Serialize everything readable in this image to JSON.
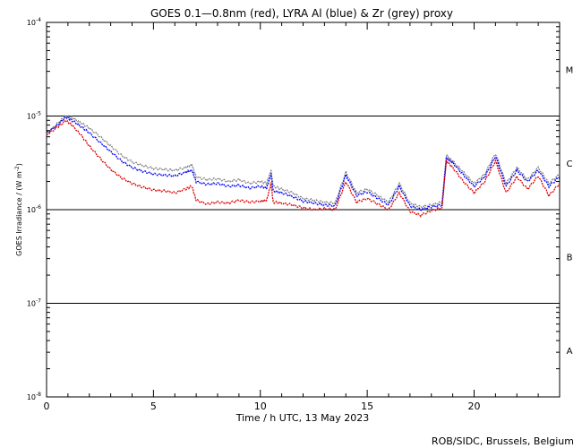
{
  "chart_data": {
    "type": "line",
    "title": "GOES 0.1—0.8nm (red), LYRA Al (blue) & Zr (grey) proxy",
    "xlabel": "Time / h UTC, 13 May 2023",
    "ylabel": "GOES Irradiance / (W m",
    "ylabel_sup": "-2",
    "ylabel_close": ")",
    "credit": "ROB/SIDC, Brussels, Belgium",
    "xlim": [
      0,
      24
    ],
    "ylim_log10": [
      -8,
      -4
    ],
    "y_scale": "log",
    "xticks": [
      {
        "value": 0,
        "label": "0"
      },
      {
        "value": 5,
        "label": "5"
      },
      {
        "value": 10,
        "label": "10"
      },
      {
        "value": 15,
        "label": "15"
      },
      {
        "value": 20,
        "label": "20"
      }
    ],
    "yticks": [
      {
        "exp": -8,
        "base": "10",
        "sup": "-8"
      },
      {
        "exp": -7,
        "base": "10",
        "sup": "-7"
      },
      {
        "exp": -6,
        "base": "10",
        "sup": "-6"
      },
      {
        "exp": -5,
        "base": "10",
        "sup": "-5"
      },
      {
        "exp": -4,
        "base": "10",
        "sup": "-4"
      }
    ],
    "flare_class_lines": [
      -7,
      -6,
      -5
    ],
    "flare_classes": [
      {
        "label": "A",
        "log_center": -7.5
      },
      {
        "label": "B",
        "log_center": -6.5
      },
      {
        "label": "C",
        "log_center": -5.5
      },
      {
        "label": "M",
        "log_center": -4.5
      }
    ],
    "series": [
      {
        "name": "LYRA Zr proxy (grey)",
        "color": "#808080",
        "points": [
          [
            0,
            -5.2
          ],
          [
            0.5,
            -5.08
          ],
          [
            0.9,
            -5.0
          ],
          [
            1.2,
            -5.02
          ],
          [
            1.6,
            -5.07
          ],
          [
            2.0,
            -5.13
          ],
          [
            2.5,
            -5.22
          ],
          [
            3.0,
            -5.32
          ],
          [
            3.5,
            -5.42
          ],
          [
            4.0,
            -5.49
          ],
          [
            4.5,
            -5.53
          ],
          [
            5.0,
            -5.56
          ],
          [
            5.5,
            -5.57
          ],
          [
            6.0,
            -5.58
          ],
          [
            6.5,
            -5.55
          ],
          [
            6.8,
            -5.52
          ],
          [
            7.0,
            -5.65
          ],
          [
            7.5,
            -5.68
          ],
          [
            8.0,
            -5.67
          ],
          [
            8.5,
            -5.7
          ],
          [
            9.0,
            -5.68
          ],
          [
            9.5,
            -5.72
          ],
          [
            10.0,
            -5.7
          ],
          [
            10.3,
            -5.72
          ],
          [
            10.5,
            -5.58
          ],
          [
            10.6,
            -5.75
          ],
          [
            11.0,
            -5.78
          ],
          [
            11.5,
            -5.82
          ],
          [
            12.0,
            -5.88
          ],
          [
            12.5,
            -5.9
          ],
          [
            13.0,
            -5.92
          ],
          [
            13.5,
            -5.93
          ],
          [
            14.0,
            -5.6
          ],
          [
            14.5,
            -5.82
          ],
          [
            15.0,
            -5.78
          ],
          [
            15.5,
            -5.85
          ],
          [
            16.0,
            -5.92
          ],
          [
            16.5,
            -5.72
          ],
          [
            17.0,
            -5.93
          ],
          [
            17.5,
            -5.97
          ],
          [
            18.0,
            -5.95
          ],
          [
            18.5,
            -5.92
          ],
          [
            18.7,
            -5.42
          ],
          [
            19.0,
            -5.48
          ],
          [
            19.5,
            -5.6
          ],
          [
            20.0,
            -5.72
          ],
          [
            20.5,
            -5.62
          ],
          [
            21.0,
            -5.4
          ],
          [
            21.5,
            -5.72
          ],
          [
            22.0,
            -5.55
          ],
          [
            22.5,
            -5.68
          ],
          [
            23.0,
            -5.55
          ],
          [
            23.5,
            -5.72
          ],
          [
            24.0,
            -5.62
          ]
        ]
      },
      {
        "name": "LYRA Al proxy (blue)",
        "color": "#0000ff",
        "points": [
          [
            0,
            -5.18
          ],
          [
            0.5,
            -5.1
          ],
          [
            0.9,
            -5.01
          ],
          [
            1.2,
            -5.05
          ],
          [
            1.6,
            -5.11
          ],
          [
            2.0,
            -5.18
          ],
          [
            2.5,
            -5.28
          ],
          [
            3.0,
            -5.38
          ],
          [
            3.5,
            -5.48
          ],
          [
            4.0,
            -5.55
          ],
          [
            4.5,
            -5.59
          ],
          [
            5.0,
            -5.62
          ],
          [
            5.5,
            -5.63
          ],
          [
            6.0,
            -5.64
          ],
          [
            6.5,
            -5.6
          ],
          [
            6.8,
            -5.58
          ],
          [
            7.0,
            -5.7
          ],
          [
            7.5,
            -5.73
          ],
          [
            8.0,
            -5.72
          ],
          [
            8.5,
            -5.75
          ],
          [
            9.0,
            -5.74
          ],
          [
            9.5,
            -5.77
          ],
          [
            10.0,
            -5.75
          ],
          [
            10.3,
            -5.77
          ],
          [
            10.5,
            -5.62
          ],
          [
            10.6,
            -5.8
          ],
          [
            11.0,
            -5.82
          ],
          [
            11.5,
            -5.86
          ],
          [
            12.0,
            -5.91
          ],
          [
            12.5,
            -5.93
          ],
          [
            13.0,
            -5.95
          ],
          [
            13.5,
            -5.96
          ],
          [
            14.0,
            -5.63
          ],
          [
            14.5,
            -5.85
          ],
          [
            15.0,
            -5.81
          ],
          [
            15.5,
            -5.88
          ],
          [
            16.0,
            -5.95
          ],
          [
            16.5,
            -5.75
          ],
          [
            17.0,
            -5.96
          ],
          [
            17.5,
            -6.0
          ],
          [
            18.0,
            -5.97
          ],
          [
            18.5,
            -5.95
          ],
          [
            18.7,
            -5.45
          ],
          [
            19.0,
            -5.5
          ],
          [
            19.5,
            -5.63
          ],
          [
            20.0,
            -5.75
          ],
          [
            20.5,
            -5.65
          ],
          [
            21.0,
            -5.43
          ],
          [
            21.5,
            -5.75
          ],
          [
            22.0,
            -5.58
          ],
          [
            22.5,
            -5.7
          ],
          [
            23.0,
            -5.58
          ],
          [
            23.5,
            -5.75
          ],
          [
            24.0,
            -5.65
          ]
        ]
      },
      {
        "name": "GOES 0.1-0.8nm (red)",
        "color": "#dd0000",
        "points": [
          [
            0,
            -5.2
          ],
          [
            0.5,
            -5.12
          ],
          [
            0.9,
            -5.05
          ],
          [
            1.2,
            -5.1
          ],
          [
            1.6,
            -5.2
          ],
          [
            2.0,
            -5.32
          ],
          [
            2.5,
            -5.45
          ],
          [
            3.0,
            -5.57
          ],
          [
            3.5,
            -5.66
          ],
          [
            4.0,
            -5.72
          ],
          [
            4.5,
            -5.76
          ],
          [
            5.0,
            -5.79
          ],
          [
            5.5,
            -5.8
          ],
          [
            6.0,
            -5.82
          ],
          [
            6.5,
            -5.78
          ],
          [
            6.8,
            -5.75
          ],
          [
            7.0,
            -5.9
          ],
          [
            7.5,
            -5.94
          ],
          [
            8.0,
            -5.92
          ],
          [
            8.5,
            -5.93
          ],
          [
            9.0,
            -5.9
          ],
          [
            9.5,
            -5.92
          ],
          [
            10.0,
            -5.91
          ],
          [
            10.3,
            -5.9
          ],
          [
            10.5,
            -5.72
          ],
          [
            10.6,
            -5.92
          ],
          [
            11.0,
            -5.93
          ],
          [
            11.5,
            -5.95
          ],
          [
            12.0,
            -5.98
          ],
          [
            12.5,
            -6.0
          ],
          [
            13.0,
            -5.99
          ],
          [
            13.5,
            -6.0
          ],
          [
            14.0,
            -5.7
          ],
          [
            14.5,
            -5.92
          ],
          [
            15.0,
            -5.88
          ],
          [
            15.5,
            -5.94
          ],
          [
            16.0,
            -6.0
          ],
          [
            16.5,
            -5.82
          ],
          [
            17.0,
            -6.02
          ],
          [
            17.5,
            -6.06
          ],
          [
            18.0,
            -6.01
          ],
          [
            18.5,
            -5.98
          ],
          [
            18.7,
            -5.48
          ],
          [
            19.0,
            -5.55
          ],
          [
            19.5,
            -5.7
          ],
          [
            20.0,
            -5.82
          ],
          [
            20.5,
            -5.7
          ],
          [
            21.0,
            -5.48
          ],
          [
            21.5,
            -5.82
          ],
          [
            22.0,
            -5.65
          ],
          [
            22.5,
            -5.78
          ],
          [
            23.0,
            -5.64
          ],
          [
            23.5,
            -5.85
          ],
          [
            24.0,
            -5.72
          ]
        ]
      }
    ]
  }
}
